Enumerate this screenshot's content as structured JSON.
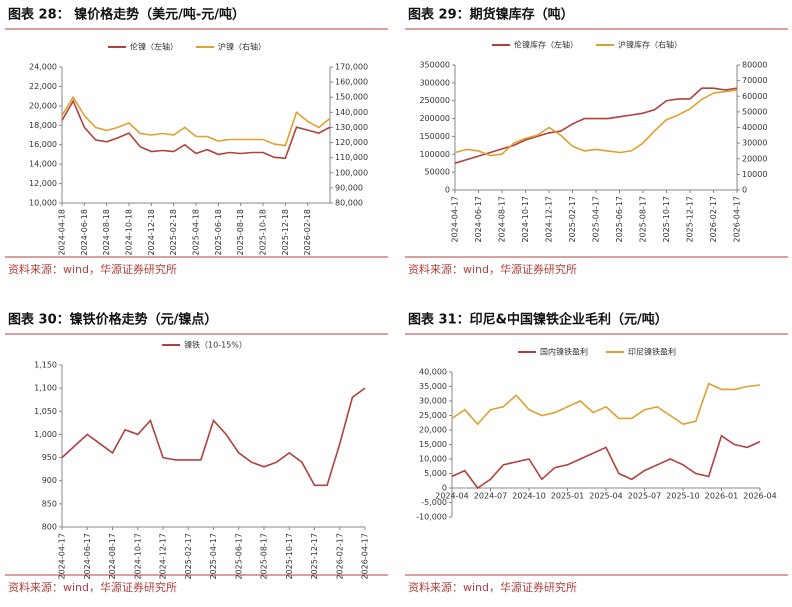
{
  "chart_data": [
    {
      "type": "line",
      "title": "图表 28：  镍价格走势（美元/吨-元/吨）",
      "source": "资料来源：wind，华源证券研究所",
      "categories": [
        "2024-04-18",
        null,
        "2024-06-18",
        null,
        "2024-08-18",
        null,
        "2024-10-18",
        null,
        "2024-12-18",
        null,
        "2025-02-18",
        null,
        "2025-04-18",
        null,
        "2025-06-18",
        null,
        "2025-08-18",
        null,
        "2025-10-18",
        null,
        "2025-12-18",
        null,
        "2026-02-18",
        null,
        null
      ],
      "series": [
        {
          "name": "伦镍（左轴）",
          "color": "#b0413e",
          "axis": "y",
          "values": [
            18500,
            20500,
            17800,
            16500,
            16300,
            16700,
            17200,
            15800,
            15300,
            15400,
            15300,
            16000,
            15100,
            15500,
            15000,
            15200,
            15100,
            15200,
            15200,
            14700,
            14600,
            17800,
            17500,
            17200,
            17800
          ]
        },
        {
          "name": "沪镍（右轴）",
          "color": "#e0a030",
          "axis": "y2",
          "values": [
            138000,
            150000,
            138000,
            130000,
            128000,
            130000,
            133000,
            126000,
            125000,
            126000,
            125000,
            130000,
            124000,
            124000,
            121000,
            122000,
            122000,
            122000,
            122000,
            119000,
            118000,
            140000,
            134000,
            130000,
            136000
          ]
        }
      ],
      "ylim": [
        10000,
        24000
      ],
      "yticks": [
        {
          "value": 10000,
          "label": "10,000"
        },
        {
          "value": 12000,
          "label": "12,000"
        },
        {
          "value": 14000,
          "label": "14,000"
        },
        {
          "value": 16000,
          "label": "16,000"
        },
        {
          "value": 18000,
          "label": "18,000"
        },
        {
          "value": 20000,
          "label": "20,000"
        },
        {
          "value": 22000,
          "label": "22,000"
        },
        {
          "value": 24000,
          "label": "24,000"
        }
      ],
      "y2lim": [
        80000,
        170000
      ],
      "y2ticks": [
        {
          "value": 80000,
          "label": "80,000"
        },
        {
          "value": 90000,
          "label": "90,000"
        },
        {
          "value": 100000,
          "label": "100,000"
        },
        {
          "value": 110000,
          "label": "110,000"
        },
        {
          "value": 120000,
          "label": "120,000"
        },
        {
          "value": 130000,
          "label": "130,000"
        },
        {
          "value": 140000,
          "label": "140,000"
        },
        {
          "value": 150000,
          "label": "150,000"
        },
        {
          "value": 160000,
          "label": "160,000"
        },
        {
          "value": 170000,
          "label": "170,000"
        }
      ],
      "legend": "top"
    },
    {
      "type": "line",
      "title": "图表 29：期货镍库存（吨）",
      "source": "资料来源：wind，华源证券研究所",
      "categories": [
        "2024-04-17",
        null,
        "2024-06-17",
        null,
        "2024-08-17",
        null,
        "2024-10-17",
        null,
        "2024-12-17",
        null,
        "2025-02-17",
        null,
        "2025-04-17",
        null,
        "2025-06-17",
        null,
        "2025-08-17",
        null,
        "2025-10-17",
        null,
        "2025-12-17",
        null,
        "2026-02-17",
        null,
        "2026-04-17"
      ],
      "series": [
        {
          "name": "伦镍库存（左轴）",
          "color": "#b0413e",
          "axis": "y",
          "values": [
            75000,
            85000,
            95000,
            105000,
            115000,
            125000,
            140000,
            150000,
            160000,
            165000,
            185000,
            200000,
            200000,
            200000,
            205000,
            210000,
            215000,
            225000,
            250000,
            255000,
            255000,
            285000,
            285000,
            280000,
            285000
          ]
        },
        {
          "name": "沪镍库存（右轴）",
          "color": "#e0a030",
          "axis": "y2",
          "values": [
            24000,
            26000,
            25000,
            22000,
            23000,
            30000,
            33000,
            35000,
            40000,
            35000,
            28000,
            25000,
            26000,
            25000,
            24000,
            25000,
            30000,
            38000,
            45000,
            48000,
            52000,
            58000,
            62000,
            63000,
            64000
          ]
        }
      ],
      "ylim": [
        0,
        350000
      ],
      "yticks": [
        0,
        50000,
        100000,
        150000,
        200000,
        250000,
        300000,
        350000
      ],
      "y2lim": [
        0,
        80000
      ],
      "y2ticks": [
        0,
        10000,
        20000,
        30000,
        40000,
        50000,
        60000,
        70000,
        80000
      ],
      "legend": "top"
    },
    {
      "type": "line",
      "title": "图表 30：镍铁价格走势（元/镍点）",
      "source": "资料来源：wind，华源证券研究所",
      "categories": [
        "2024-04-17",
        null,
        "2024-06-17",
        null,
        "2024-08-17",
        null,
        "2024-10-17",
        null,
        "2024-12-17",
        null,
        "2025-02-17",
        null,
        "2025-04-17",
        null,
        "2025-06-17",
        null,
        "2025-08-17",
        null,
        "2025-10-17",
        null,
        "2025-12-17",
        null,
        "2026-02-17",
        null,
        "2026-04-17"
      ],
      "series": [
        {
          "name": "镍铁（10-15%）",
          "color": "#b0413e",
          "axis": "y",
          "values": [
            950,
            975,
            1000,
            980,
            960,
            1010,
            1000,
            1030,
            950,
            945,
            945,
            945,
            1030,
            1000,
            960,
            940,
            930,
            940,
            960,
            940,
            890,
            890,
            980,
            1080,
            1100
          ]
        }
      ],
      "ylim": [
        800,
        1150
      ],
      "yticks": [
        800,
        850,
        900,
        950,
        {
          "value": 1000,
          "label": "1,000"
        },
        {
          "value": 1050,
          "label": "1,050"
        },
        {
          "value": 1100,
          "label": "1,100"
        },
        {
          "value": 1150,
          "label": "1,150"
        }
      ],
      "legend": "top"
    },
    {
      "type": "line",
      "title": "图表 31：印尼&中国镍铁企业毛利（元/吨）",
      "source": "资料来源：wind，华源证券研究所",
      "categories": [
        "2024-04",
        null,
        null,
        "2024-07",
        null,
        null,
        "2024-10",
        null,
        null,
        "2025-01",
        null,
        null,
        "2025-04",
        null,
        null,
        "2025-07",
        null,
        null,
        "2025-10",
        null,
        null,
        "2026-01",
        null,
        null,
        "2026-04"
      ],
      "series": [
        {
          "name": "国内镍铁盈利",
          "color": "#b0413e",
          "axis": "y",
          "values": [
            4000,
            6000,
            0,
            3000,
            8000,
            9000,
            10000,
            3000,
            7000,
            8000,
            10000,
            12000,
            14000,
            5000,
            3000,
            6000,
            8000,
            10000,
            8000,
            5000,
            4000,
            18000,
            15000,
            14000,
            16000
          ]
        },
        {
          "name": "印尼镍铁盈利",
          "color": "#e0a030",
          "axis": "y",
          "values": [
            24000,
            27000,
            22000,
            27000,
            28000,
            32000,
            27000,
            25000,
            26000,
            28000,
            30000,
            26000,
            28000,
            24000,
            24000,
            27000,
            28000,
            25000,
            22000,
            23000,
            36000,
            34000,
            34000,
            35000,
            35500
          ]
        }
      ],
      "ylim": [
        -10000,
        40000
      ],
      "yticks": [
        {
          "value": -10000,
          "label": "-10,000"
        },
        {
          "value": -5000,
          "label": "-5,000"
        },
        0,
        {
          "value": 5000,
          "label": "5,000"
        },
        {
          "value": 10000,
          "label": "10,000"
        },
        {
          "value": 15000,
          "label": "15,000"
        },
        {
          "value": 20000,
          "label": "20,000"
        },
        {
          "value": 25000,
          "label": "25,000"
        },
        {
          "value": 30000,
          "label": "30,000"
        },
        {
          "value": 35000,
          "label": "35,000"
        },
        {
          "value": 40000,
          "label": "40,000"
        }
      ],
      "legend": "top"
    }
  ]
}
